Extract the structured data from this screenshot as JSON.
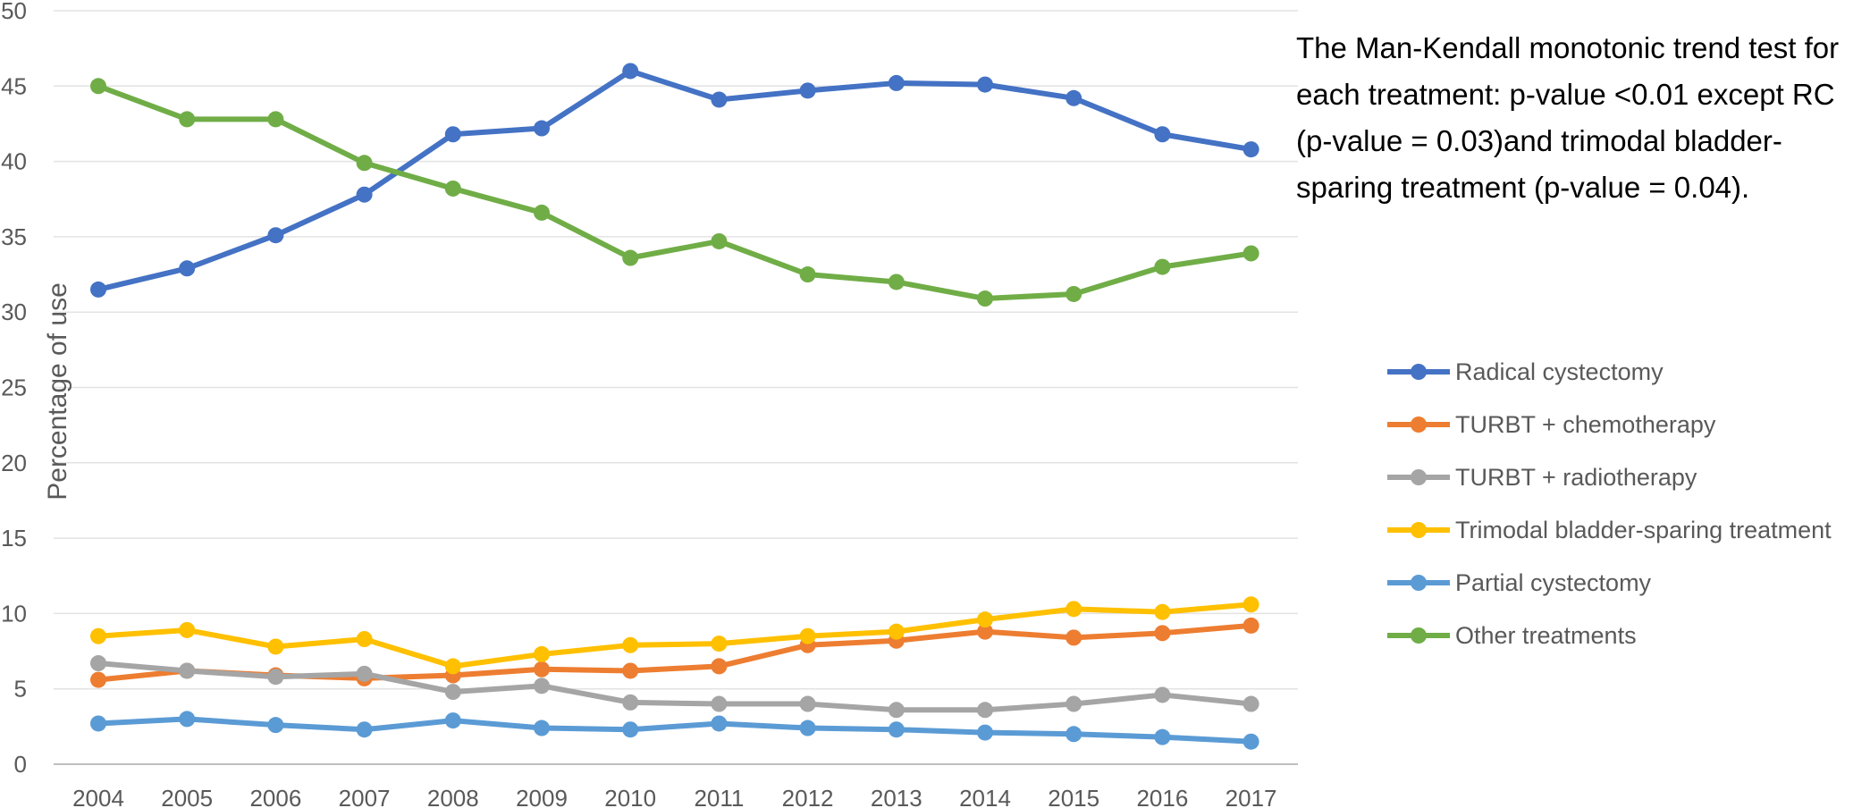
{
  "chart_data": {
    "type": "line",
    "title": "",
    "xlabel": "",
    "ylabel": "Percentage of use",
    "ylim": [
      0,
      50
    ],
    "yticks": [
      0,
      5,
      10,
      15,
      20,
      25,
      30,
      35,
      40,
      45,
      50
    ],
    "x": [
      "2004",
      "2005",
      "2006",
      "2007",
      "2008",
      "2009",
      "2010",
      "2011",
      "2012",
      "2013",
      "2014",
      "2015",
      "2016",
      "2017"
    ],
    "grid": "horizontal",
    "legend_position": "right",
    "series": [
      {
        "name": "Radical cystectomy",
        "color": "#4472C4",
        "values": [
          31.5,
          32.9,
          35.1,
          37.8,
          41.8,
          42.2,
          46.0,
          44.1,
          44.7,
          45.2,
          45.1,
          44.2,
          41.8,
          40.8
        ]
      },
      {
        "name": "TURBT + chemotherapy",
        "color": "#ED7D31",
        "values": [
          5.6,
          6.2,
          5.9,
          5.7,
          5.9,
          6.3,
          6.2,
          6.5,
          7.9,
          8.2,
          8.8,
          8.4,
          8.7,
          9.2
        ]
      },
      {
        "name": "TURBT + radiotherapy",
        "color": "#A5A5A5",
        "values": [
          6.7,
          6.2,
          5.8,
          6.0,
          4.8,
          5.2,
          4.1,
          4.0,
          4.0,
          3.6,
          3.6,
          4.0,
          4.6,
          4.0
        ]
      },
      {
        "name": "Trimodal bladder-sparing treatment",
        "color": "#FFC000",
        "values": [
          8.5,
          8.9,
          7.8,
          8.3,
          6.5,
          7.3,
          7.9,
          8.0,
          8.5,
          8.8,
          9.6,
          10.3,
          10.1,
          10.6
        ]
      },
      {
        "name": "Partial cystectomy",
        "color": "#5B9BD5",
        "values": [
          2.7,
          3.0,
          2.6,
          2.3,
          2.9,
          2.4,
          2.3,
          2.7,
          2.4,
          2.3,
          2.1,
          2.0,
          1.8,
          1.5
        ]
      },
      {
        "name": "Other treatments",
        "color": "#70AD47",
        "values": [
          45.0,
          42.8,
          42.8,
          39.9,
          38.2,
          36.6,
          33.6,
          34.7,
          32.5,
          32.0,
          30.9,
          31.2,
          33.0,
          33.9
        ]
      }
    ],
    "annotation": "The Man-Kendall monotonic trend test for each treatment: p-value <0.01 except RC (p-value = 0.03)and trimodal bladder-sparing treatment (p-value = 0.04)."
  }
}
